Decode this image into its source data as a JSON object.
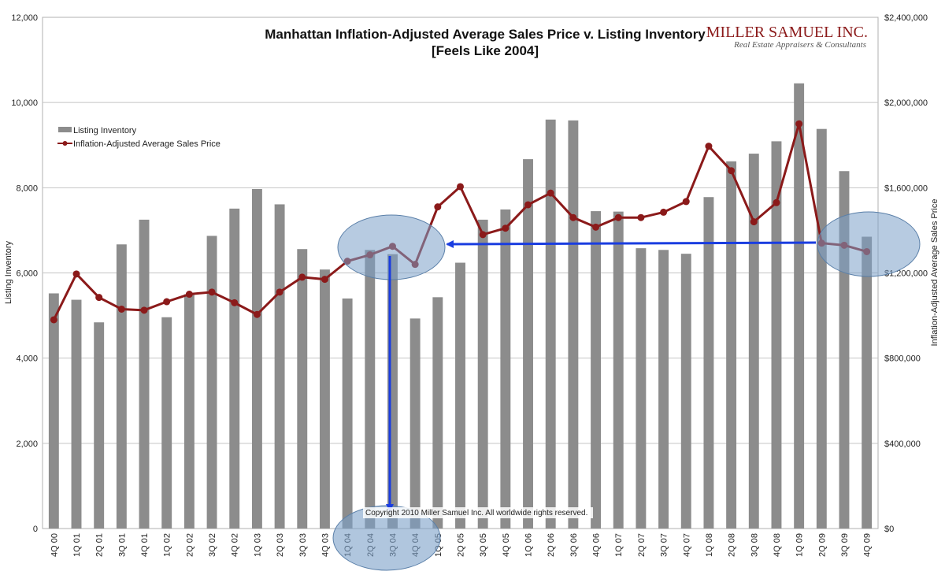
{
  "chart_data": {
    "type": "bar",
    "title": "Manhattan Inflation-Adjusted Average Sales Price v. Listing Inventory",
    "subtitle": "[Feels Like 2004]",
    "ylabel": "Listing Inventory",
    "y2label": "Inflation-Adjusted Average Sales Price",
    "ylim": [
      0,
      12000
    ],
    "y2lim": [
      0,
      2400000
    ],
    "yticks": [
      "0",
      "2,000",
      "4,000",
      "6,000",
      "8,000",
      "10,000",
      "12,000"
    ],
    "y2ticks": [
      "$0",
      "$400,000",
      "$800,000",
      "$1,200,000",
      "$1,600,000",
      "$2,000,000",
      "$2,400,000"
    ],
    "grid": true,
    "legend_position": "top-left",
    "categories": [
      "4Q 00",
      "1Q 01",
      "2Q 01",
      "3Q 01",
      "4Q 01",
      "1Q 02",
      "2Q 02",
      "3Q 02",
      "4Q 02",
      "1Q 03",
      "2Q 03",
      "3Q 03",
      "4Q 03",
      "1Q 04",
      "2Q 04",
      "3Q 04",
      "4Q 04",
      "1Q 05",
      "2Q 05",
      "3Q 05",
      "4Q 05",
      "1Q 06",
      "2Q 06",
      "3Q 06",
      "4Q 06",
      "1Q 07",
      "2Q 07",
      "3Q 07",
      "4Q 07",
      "1Q 08",
      "2Q 08",
      "3Q 08",
      "4Q 08",
      "1Q 09",
      "2Q 09",
      "3Q 09",
      "4Q 09"
    ],
    "series": [
      {
        "name": "Listing Inventory",
        "kind": "bar",
        "axis": "left",
        "color": "#8c8c8c",
        "values": [
          5520,
          5370,
          4840,
          6670,
          7250,
          4960,
          5500,
          6870,
          7510,
          7970,
          7610,
          6560,
          6080,
          5400,
          6540,
          6440,
          4930,
          5430,
          6240,
          7250,
          7490,
          8670,
          9600,
          9580,
          7450,
          7440,
          6580,
          6540,
          6450,
          7780,
          8620,
          8800,
          9090,
          10450,
          9380,
          8390,
          6850
        ]
      },
      {
        "name": "Inflation-Adjusted Average Sales Price",
        "kind": "line",
        "axis": "right",
        "color": "#8b1a1a",
        "values": [
          980000,
          1195000,
          1085000,
          1030000,
          1025000,
          1065000,
          1100000,
          1110000,
          1060000,
          1005000,
          1110000,
          1180000,
          1170000,
          1255000,
          1285000,
          1325000,
          1240000,
          1510000,
          1605000,
          1380000,
          1410000,
          1520000,
          1575000,
          1460000,
          1415000,
          1460000,
          1460000,
          1485000,
          1535000,
          1795000,
          1680000,
          1440000,
          1530000,
          1900000,
          1340000,
          1330000,
          1300000
        ]
      }
    ],
    "annotations": {
      "copyright": "Copyright 2010 Miller Samuel Inc.  All worldwide rights reserved.",
      "highlight_color": "#7ba0c8",
      "arrow_color": "#1a3de0"
    }
  },
  "brand": {
    "name": "MILLER SAMUEL INC.",
    "tagline": "Real Estate Appraisers & Consultants"
  }
}
